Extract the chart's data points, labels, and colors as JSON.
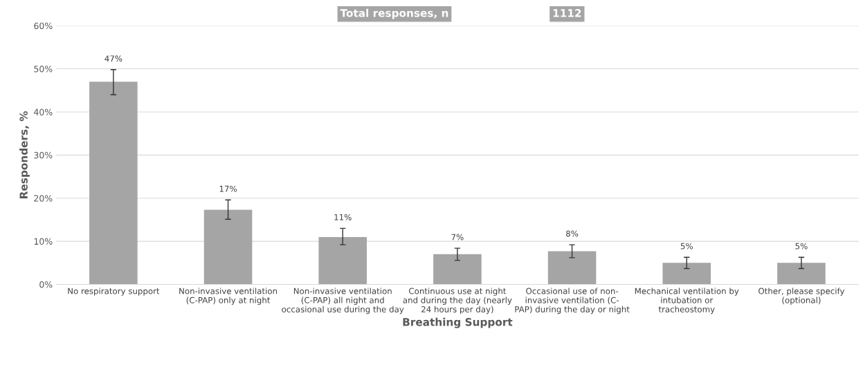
{
  "chart_data": {
    "type": "bar",
    "xlabel": "Breathing Support",
    "ylabel": "Responders, %",
    "categories": [
      "No respiratory support",
      "Non-invasive ventilation\n(C-PAP) only at night",
      "Non-invasive ventilation\n(C-PAP) all night and\noccasional use during the day",
      "Continuous use at night\nand during the day (nearly\n24 hours per day)",
      "Occasional use of non-\ninvasive ventilation (C-\nPAP) during the day or night",
      "Mechanical ventilation by\nintubation or\ntracheostomy",
      "Other, please specify\n(optional)"
    ],
    "values": [
      47,
      17.3,
      11,
      7,
      7.7,
      5,
      5
    ],
    "value_labels": [
      "47%",
      "17%",
      "11%",
      "7%",
      "8%",
      "5%",
      "5%"
    ],
    "errors": [
      [
        44,
        49.8
      ],
      [
        15.1,
        19.6
      ],
      [
        9.2,
        13
      ],
      [
        5.6,
        8.4
      ],
      [
        6.2,
        9.2
      ],
      [
        3.7,
        6.3
      ],
      [
        3.7,
        6.3
      ]
    ],
    "color": "#a5a5a5",
    "ylim": [
      0,
      60
    ],
    "yticks": [
      {
        "value": 0,
        "label": "0%"
      },
      {
        "value": 10,
        "label": "10%"
      },
      {
        "value": 20,
        "label": "20%"
      },
      {
        "value": 30,
        "label": "30%"
      },
      {
        "value": 40,
        "label": "40%"
      },
      {
        "value": 50,
        "label": "50%"
      },
      {
        "value": 60,
        "label": "60%"
      }
    ],
    "grid": "y",
    "annotations": [
      "Total responses, n",
      "1112"
    ]
  }
}
